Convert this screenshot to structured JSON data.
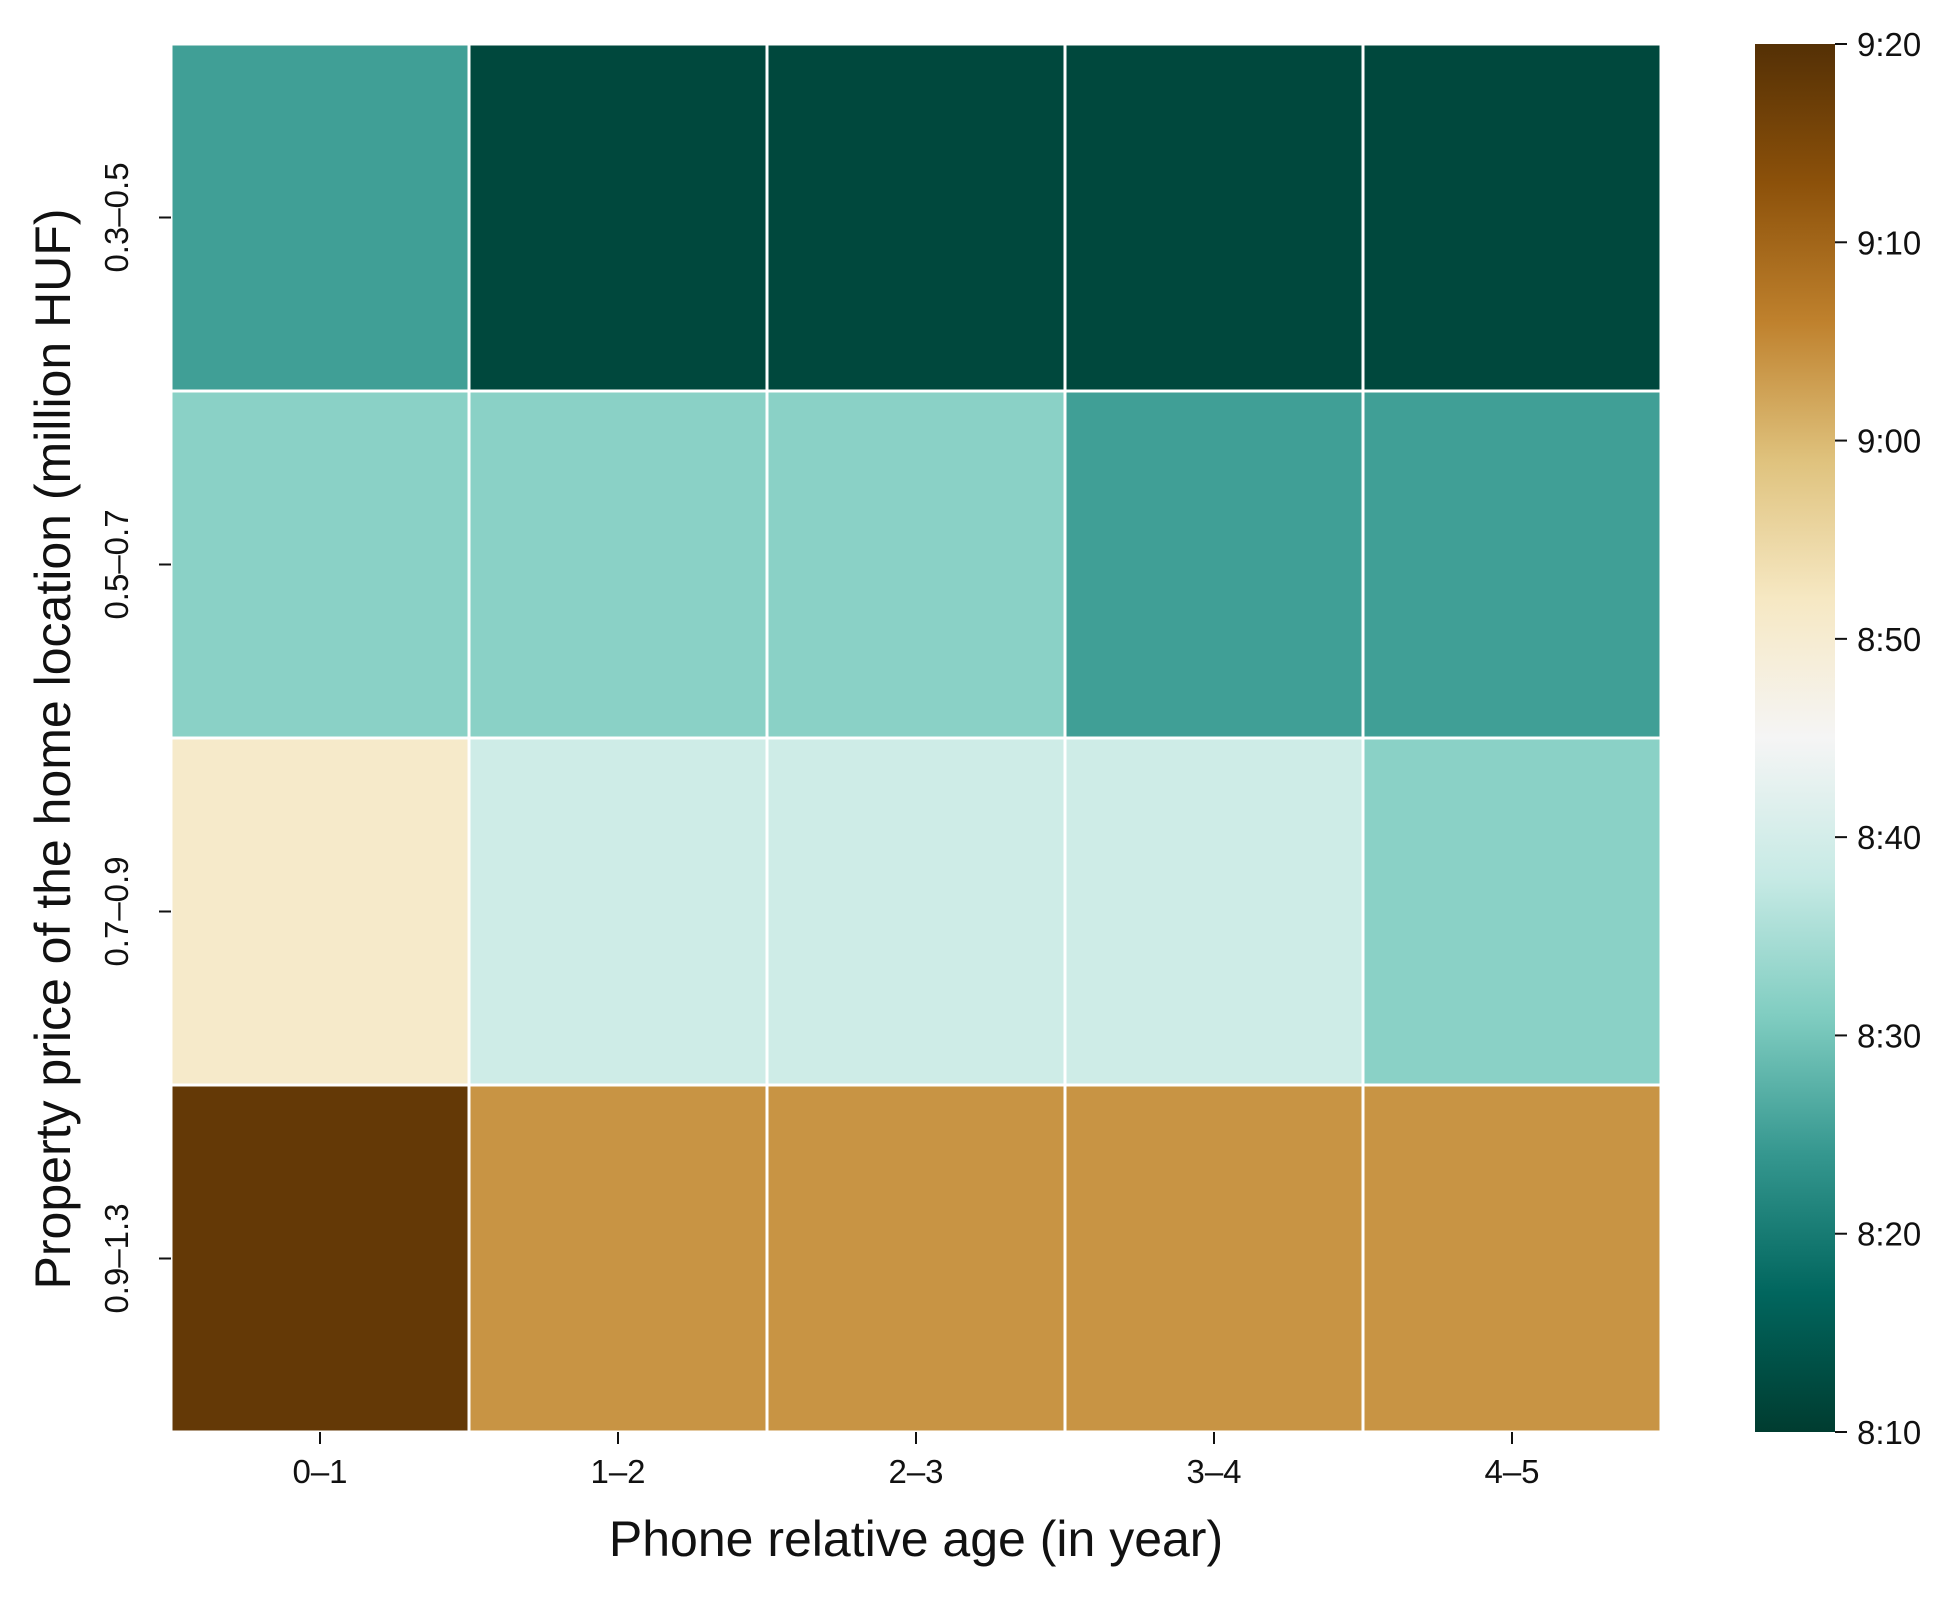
{
  "chart_data": {
    "type": "heatmap",
    "title": "",
    "xlabel": "Phone relative age (in year)",
    "ylabel": "Property price of the home location (million HUF)",
    "x_categories": [
      "0–1",
      "1–2",
      "2–3",
      "3–4",
      "4–5"
    ],
    "y_categories": [
      "0.3–0.5",
      "0.5–0.7",
      "0.7–0.9",
      "0.9–1.3"
    ],
    "values_minutes": [
      [
        505,
        492,
        492,
        492,
        492
      ],
      [
        512,
        512,
        512,
        505,
        505
      ],
      [
        531,
        519,
        519,
        519,
        512
      ],
      [
        558,
        544,
        544,
        544,
        544
      ]
    ],
    "value_unit": "time of day",
    "colorbar": {
      "min_minutes": 490,
      "max_minutes": 560,
      "ticks": [
        {
          "label": "8:10",
          "minutes": 490
        },
        {
          "label": "8:20",
          "minutes": 500
        },
        {
          "label": "8:30",
          "minutes": 510
        },
        {
          "label": "8:40",
          "minutes": 520
        },
        {
          "label": "8:50",
          "minutes": 530
        },
        {
          "label": "9:00",
          "minutes": 540
        },
        {
          "label": "9:10",
          "minutes": 550
        },
        {
          "label": "9:20",
          "minutes": 560
        }
      ],
      "colormap": "BrBG_r",
      "color_stops": [
        "#003c30",
        "#01665e",
        "#35978f",
        "#80cdc1",
        "#c7eae5",
        "#f5f5f5",
        "#f6e8c3",
        "#dfc27d",
        "#bf812d",
        "#8c510a",
        "#543005"
      ]
    },
    "grid": true
  }
}
